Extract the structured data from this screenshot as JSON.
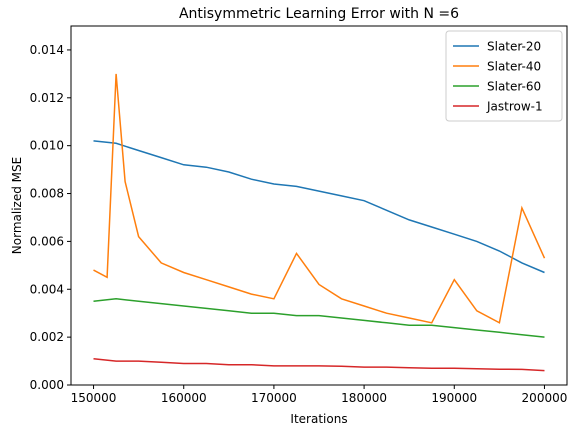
{
  "chart_data": {
    "type": "line",
    "title": "Antisymmetric Learning Error with N =6",
    "xlabel": "Iterations",
    "ylabel": "Normalized MSE",
    "xlim": [
      147500,
      202500
    ],
    "ylim": [
      0,
      0.015
    ],
    "xticks": [
      150000,
      160000,
      170000,
      180000,
      190000,
      200000
    ],
    "xtick_labels": [
      "150000",
      "160000",
      "170000",
      "180000",
      "190000",
      "200000"
    ],
    "yticks": [
      0.0,
      0.002,
      0.004,
      0.006,
      0.008,
      0.01,
      0.012,
      0.014
    ],
    "ytick_labels": [
      "0.000",
      "0.002",
      "0.004",
      "0.006",
      "0.008",
      "0.010",
      "0.012",
      "0.014"
    ],
    "grid": false,
    "legend": "upper-right",
    "series": [
      {
        "name": "Slater-20",
        "color": "#1f77b4",
        "x": [
          150000,
          152500,
          155000,
          157500,
          160000,
          162500,
          165000,
          167500,
          170000,
          172500,
          175000,
          177500,
          180000,
          182500,
          185000,
          187500,
          190000,
          192500,
          195000,
          197500,
          200000
        ],
        "y": [
          0.0102,
          0.0101,
          0.0098,
          0.0095,
          0.0092,
          0.0091,
          0.0089,
          0.0086,
          0.0084,
          0.0083,
          0.0081,
          0.0079,
          0.0077,
          0.0073,
          0.0069,
          0.0066,
          0.0063,
          0.006,
          0.0056,
          0.0051,
          0.0047
        ]
      },
      {
        "name": "Slater-40",
        "color": "#ff7f0e",
        "x": [
          150000,
          151500,
          152500,
          153500,
          155000,
          157500,
          160000,
          162500,
          165000,
          167500,
          170000,
          172500,
          175000,
          177500,
          180000,
          182500,
          185000,
          187500,
          190000,
          192500,
          195000,
          197500,
          200000
        ],
        "y": [
          0.0048,
          0.0045,
          0.013,
          0.0085,
          0.0062,
          0.0051,
          0.0047,
          0.0044,
          0.0041,
          0.0038,
          0.0036,
          0.0055,
          0.0042,
          0.0036,
          0.0033,
          0.003,
          0.0028,
          0.0026,
          0.0044,
          0.0031,
          0.0026,
          0.0074,
          0.0053
        ]
      },
      {
        "name": "Slater-60",
        "color": "#2ca02c",
        "x": [
          150000,
          152500,
          155000,
          157500,
          160000,
          162500,
          165000,
          167500,
          170000,
          172500,
          175000,
          177500,
          180000,
          182500,
          185000,
          187500,
          190000,
          192500,
          195000,
          197500,
          200000
        ],
        "y": [
          0.0035,
          0.0036,
          0.0035,
          0.0034,
          0.0033,
          0.0032,
          0.0031,
          0.003,
          0.003,
          0.0029,
          0.0029,
          0.0028,
          0.0027,
          0.0026,
          0.0025,
          0.0025,
          0.0024,
          0.0023,
          0.0022,
          0.0021,
          0.002
        ]
      },
      {
        "name": "Jastrow-1",
        "color": "#d62728",
        "x": [
          150000,
          152500,
          155000,
          157500,
          160000,
          162500,
          165000,
          167500,
          170000,
          172500,
          175000,
          177500,
          180000,
          182500,
          185000,
          187500,
          190000,
          192500,
          195000,
          197500,
          200000
        ],
        "y": [
          0.0011,
          0.001,
          0.001,
          0.00095,
          0.0009,
          0.0009,
          0.00085,
          0.00085,
          0.0008,
          0.0008,
          0.0008,
          0.00078,
          0.00075,
          0.00075,
          0.00072,
          0.0007,
          0.0007,
          0.00068,
          0.00066,
          0.00065,
          0.0006
        ]
      }
    ]
  }
}
